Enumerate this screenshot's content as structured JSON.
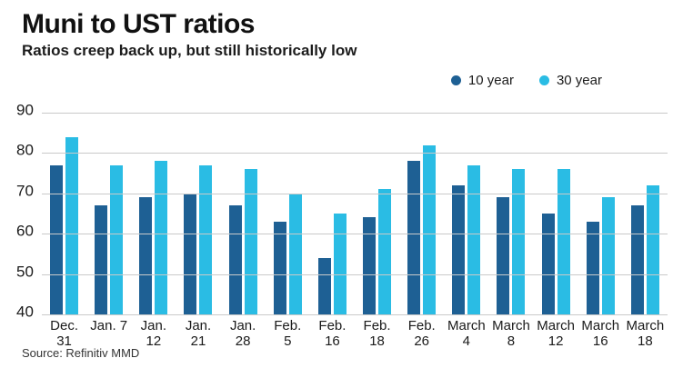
{
  "header": {
    "title": "Muni to UST ratios",
    "subtitle": "Ratios creep back up, but still historically low"
  },
  "source_line": "Source: Refinitiv MMD",
  "colors": {
    "series_10yr": "#1e6094",
    "series_30yr": "#2abce4",
    "gridline": "#c9c9c9",
    "text": "#1a1a1a"
  },
  "chart_data": {
    "type": "bar",
    "title": "Muni to UST ratios",
    "subtitle": "Ratios creep back up, but still historically low",
    "categories": [
      "Dec. 31",
      "Jan. 7",
      "Jan. 12",
      "Jan. 21",
      "Jan. 28",
      "Feb. 5",
      "Feb. 16",
      "Feb. 18",
      "Feb. 26",
      "March 4",
      "March 8",
      "March 12",
      "March 16",
      "March 18"
    ],
    "tick_label_lines": [
      [
        "Dec.",
        "31"
      ],
      [
        "Jan. 7"
      ],
      [
        "Jan.",
        "12"
      ],
      [
        "Jan.",
        "21"
      ],
      [
        "Jan.",
        "28"
      ],
      [
        "Feb.",
        "5"
      ],
      [
        "Feb.",
        "16"
      ],
      [
        "Feb.",
        "18"
      ],
      [
        "Feb.",
        "26"
      ],
      [
        "March",
        "4"
      ],
      [
        "March",
        "8"
      ],
      [
        "March",
        "12"
      ],
      [
        "March",
        "16"
      ],
      [
        "March",
        "18"
      ]
    ],
    "series": [
      {
        "name": "10 year",
        "color": "#1e6094",
        "values": [
          77,
          67,
          69,
          70,
          67,
          63,
          54,
          64,
          78,
          72,
          69,
          65,
          63,
          67
        ]
      },
      {
        "name": "30 year",
        "color": "#2abce4",
        "values": [
          84,
          77,
          78,
          77,
          76,
          70,
          65,
          71,
          82,
          77,
          76,
          76,
          69,
          72
        ]
      }
    ],
    "xlabel": "",
    "ylabel": "",
    "ylim": [
      40,
      90
    ],
    "yticks": [
      90,
      80,
      70,
      60,
      50,
      40
    ],
    "grid": true,
    "legend_position": "top-right",
    "source": "Source: Refinitiv MMD"
  }
}
